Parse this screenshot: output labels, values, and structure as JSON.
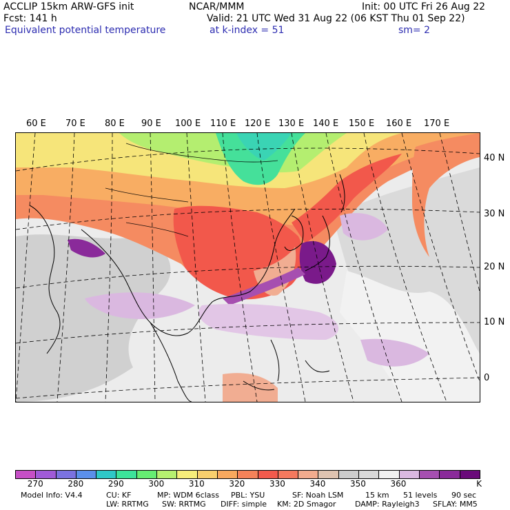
{
  "header": {
    "model": "ACCLIP 15km ARW-GFS init",
    "org": "NCAR/MMM",
    "init": "Init: 00 UTC Fri 26 Aug 22",
    "fcst": "Fcst:  141 h",
    "valid": "Valid: 21 UTC Wed 31 Aug 22 (06 KST Thu 01 Sep 22)",
    "field": "Equivalent potential temperature",
    "level": "at k-index =  51",
    "smooth": "sm= 2"
  },
  "map": {
    "top_lon_labels": [
      "60 E",
      "70 E",
      "80 E",
      "90 E",
      "100 E",
      "110 E",
      "120 E",
      "130 E",
      "140 E",
      "150 E",
      "160 E",
      "170 E"
    ],
    "right_lat_labels": [
      "40 N",
      "30 N",
      "20 N",
      "10 N",
      "0"
    ]
  },
  "colorbar": {
    "colors": [
      "#c64fc6",
      "#a05ad8",
      "#7b72e0",
      "#5b8fea",
      "#2fc8c8",
      "#3de39a",
      "#66ee73",
      "#b6f070",
      "#f6ee7a",
      "#f8cf6d",
      "#f8a85e",
      "#f58259",
      "#f35a4c",
      "#f5795e",
      "#f2ab8e",
      "#dfc3b0",
      "#cccccc",
      "#d9d9d9",
      "#f0f0f0",
      "#dab8e0",
      "#a64fb0",
      "#8a2a9a",
      "#6a0a7a"
    ],
    "labels": [
      "270",
      "280",
      "290",
      "300",
      "310",
      "320",
      "330",
      "340",
      "350",
      "360",
      "K"
    ],
    "unit": "K"
  },
  "footer": {
    "line1": [
      "Model Info: V4.4",
      "CU: KF",
      "MP: WDM 6class",
      "PBL: YSU",
      "SF: Noah LSM",
      "15 km",
      "51 levels",
      "90 sec"
    ],
    "line2": [
      "LW: RRTMG",
      "SW: RRTMG",
      "DIFF: simple",
      "KM: 2D Smagor",
      "DAMP: Rayleigh3",
      "SFLAY: MM5"
    ]
  }
}
